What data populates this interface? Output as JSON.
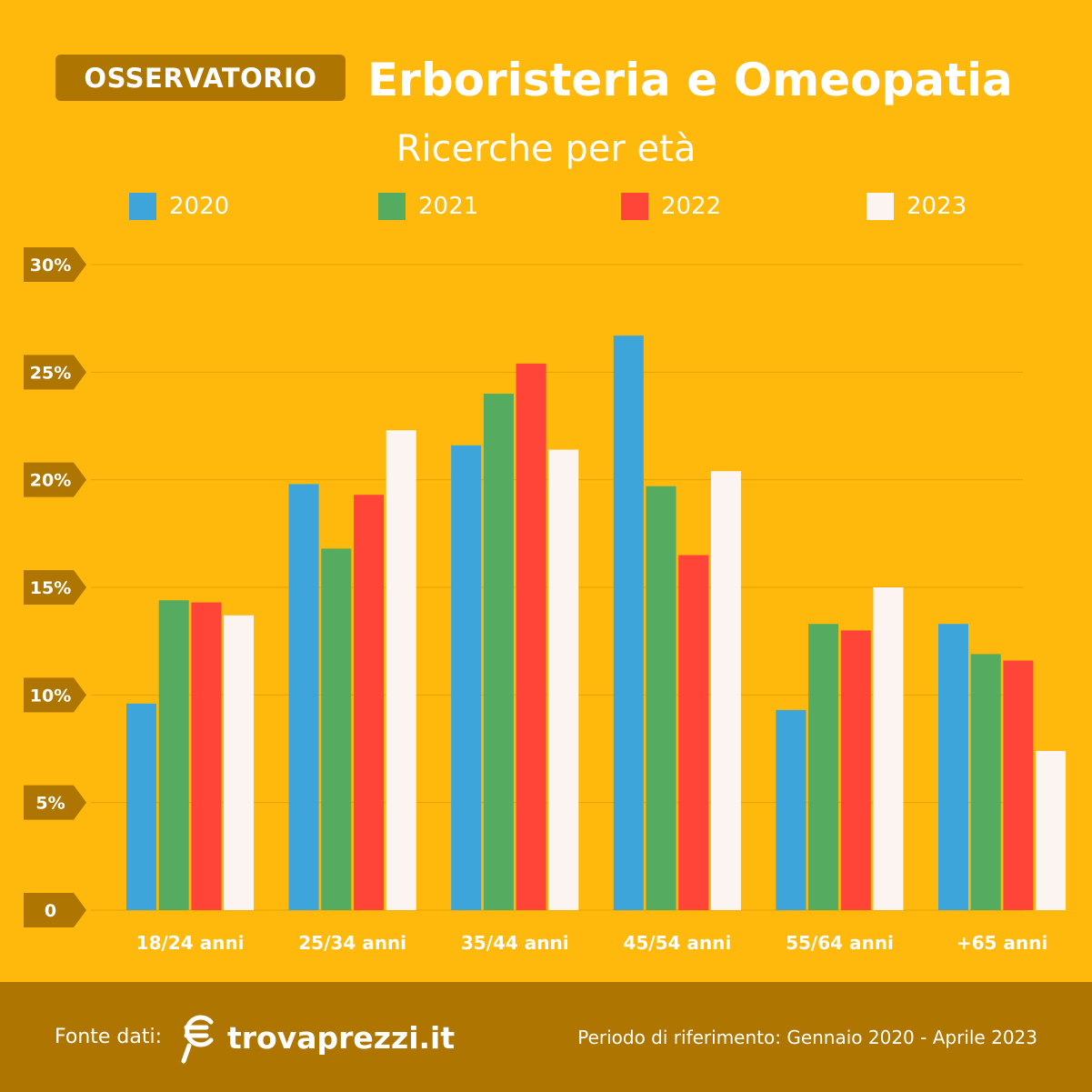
{
  "header": {
    "badge": "OSSERVATORIO",
    "title": "Erboristeria e Omeopatia",
    "subtitle": "Ricerche per età"
  },
  "colors": {
    "background": "#FEB90C",
    "dark": "#AE7600",
    "gridline": "#E6A100"
  },
  "chart_data": {
    "type": "bar",
    "title": "Ricerche per età",
    "legend_position": "top",
    "grid": true,
    "categories": [
      "18/24 anni",
      "25/34 anni",
      "35/44 anni",
      "45/54 anni",
      "55/64 anni",
      "+65 anni"
    ],
    "series": [
      {
        "name": "2020",
        "color": "#3DA5DA",
        "values": [
          9.6,
          19.8,
          21.6,
          26.7,
          9.3,
          13.3
        ]
      },
      {
        "name": "2021",
        "color": "#55AB60",
        "values": [
          14.4,
          16.8,
          24.0,
          19.7,
          13.3,
          11.9
        ]
      },
      {
        "name": "2022",
        "color": "#FF4538",
        "values": [
          14.3,
          19.3,
          25.4,
          16.5,
          13.0,
          11.6
        ]
      },
      {
        "name": "2023",
        "color": "#FBF4F1",
        "values": [
          13.7,
          22.3,
          21.4,
          20.4,
          15.0,
          7.4
        ]
      }
    ],
    "yticks": [
      {
        "value": 0,
        "label": "0"
      },
      {
        "value": 5,
        "label": "5%"
      },
      {
        "value": 10,
        "label": "10%"
      },
      {
        "value": 15,
        "label": "15%"
      },
      {
        "value": 20,
        "label": "20%"
      },
      {
        "value": 25,
        "label": "25%"
      },
      {
        "value": 30,
        "label": "30%"
      }
    ],
    "ylim": [
      0,
      30
    ]
  },
  "footer": {
    "source_label": "Fonte dati:",
    "brand": "trovaprezzi.it",
    "period": "Periodo di riferimento: Gennaio 2020 - Aprile 2023"
  }
}
